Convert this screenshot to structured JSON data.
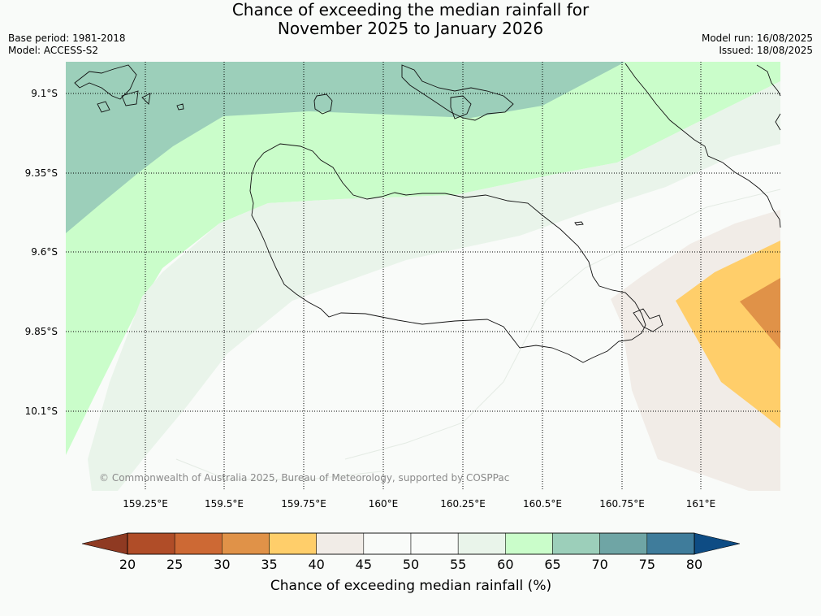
{
  "header": {
    "title_line1": "Chance of exceeding the median rainfall for",
    "title_line2": "November 2025 to January 2026",
    "base_period": "Base period: 1981-2018",
    "model": "Model: ACCESS-S2",
    "model_run": "Model run: 16/08/2025",
    "issued": "Issued: 18/08/2025"
  },
  "map": {
    "lat_labels": [
      "9.1°S",
      "9.35°S",
      "9.6°S",
      "9.85°S",
      "10.1°S"
    ],
    "lon_labels": [
      "159.25°E",
      "159.5°E",
      "159.75°E",
      "160°E",
      "160.25°E",
      "160.5°E",
      "160.75°E",
      "161°E"
    ],
    "copyright": "© Commonwealth of Australia 2025, Bureau of Meteorology, supported by COSPPac"
  },
  "colorbar": {
    "title": "Chance of exceeding median rainfall (%)",
    "ticks": [
      "20",
      "25",
      "30",
      "35",
      "40",
      "45",
      "50",
      "55",
      "60",
      "65",
      "70",
      "75",
      "80"
    ],
    "under_color": "#8f3a22",
    "over_color": "#0e4c84",
    "colors": [
      "#b04d28",
      "#cd6934",
      "#e09248",
      "#ffce6a",
      "#f1ece7",
      "#f9fbf9",
      "#f9fbf9",
      "#e9f4ea",
      "#cafdca",
      "#9ccfba",
      "#6fa5a5",
      "#3f7c9b"
    ]
  }
}
